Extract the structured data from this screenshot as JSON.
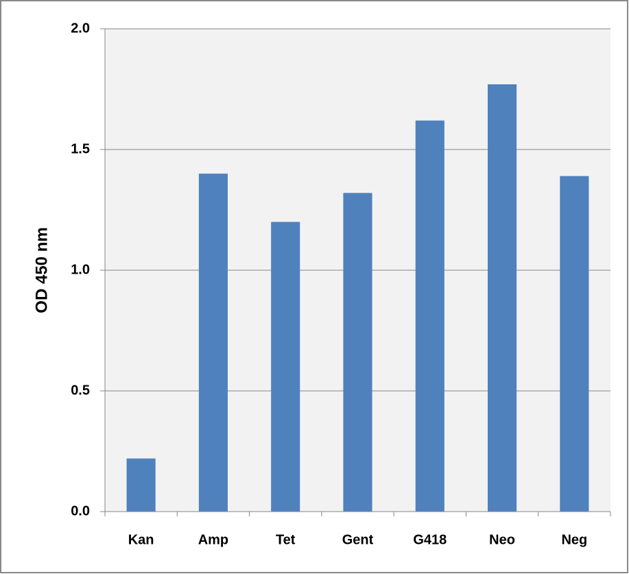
{
  "chart_data": {
    "type": "bar",
    "y_label": "OD 450 nm",
    "categories": [
      "Kan",
      "Amp",
      "Tet",
      "Gent",
      "G418",
      "Neo",
      "Neg"
    ],
    "values": [
      0.22,
      1.4,
      1.2,
      1.32,
      1.62,
      1.77,
      1.39
    ],
    "color": "#4f81bd",
    "ylim": [
      0,
      2.0
    ],
    "yticks": [
      {
        "value": 0,
        "label": "0.0"
      },
      0.5,
      {
        "value": 1.0,
        "label": "1.0"
      },
      1.5,
      {
        "value": 2.0,
        "label": "2.0"
      }
    ],
    "grid": true
  }
}
